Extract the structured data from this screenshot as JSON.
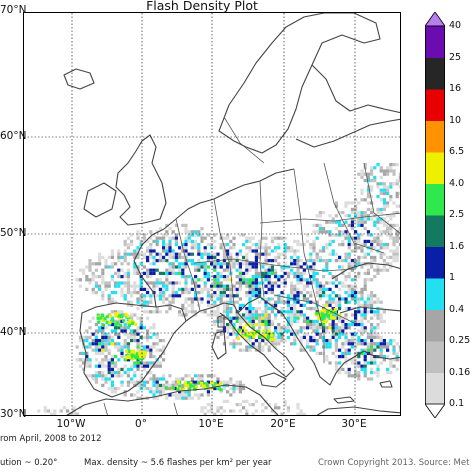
{
  "title": "Flash Density Plot",
  "lat_labels": [
    "70°N",
    "60°N",
    "50°N",
    "40°N",
    "30°N"
  ],
  "lon_labels": [
    "10°W",
    "0°",
    "10°E",
    "20°E",
    "30°E"
  ],
  "colorbar": {
    "levels": [
      "0.1",
      "0.16",
      "0.25",
      "0.4",
      "1",
      "1.6",
      "2.5",
      "4.0",
      "6.5",
      "10",
      "16",
      "25",
      "40"
    ],
    "colors": [
      "#ffffff",
      "#dcdcdc",
      "#c0c0c0",
      "#a6a6a6",
      "#22e0f0",
      "#0a1fa8",
      "#127a5e",
      "#2ee84e",
      "#eef000",
      "#ff9200",
      "#e80000",
      "#262626",
      "#6a0cb0",
      "#b77ef0"
    ]
  },
  "footer": {
    "date_range": "rom April, 2008 to 2012",
    "resolution": "ution ~ 0.20°",
    "max_density": "Max. density ~ 5.6 flashes per km² per year",
    "copyright": "Crown Copyright 2013. Source: Met"
  }
}
